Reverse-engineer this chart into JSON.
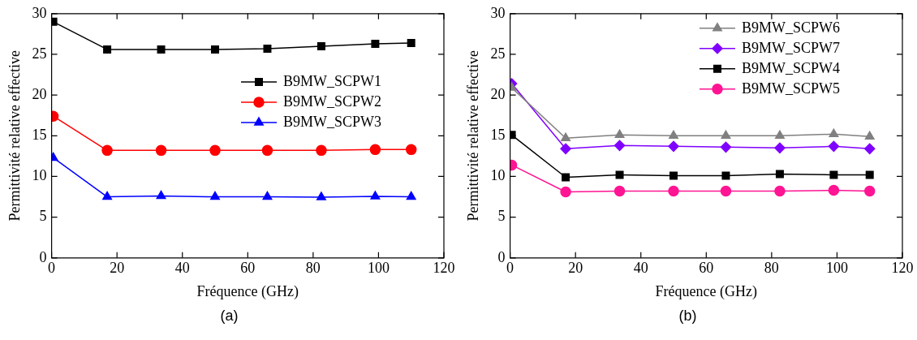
{
  "chart_data": [
    {
      "type": "line",
      "xlabel": "Fréquence (GHz)",
      "ylabel": "Permittivité relative effective",
      "xlim": [
        0,
        120
      ],
      "xticks": [
        0,
        20,
        40,
        60,
        80,
        100,
        120
      ],
      "ylim": [
        0,
        30
      ],
      "yticks": [
        0,
        5,
        10,
        15,
        20,
        25,
        30
      ],
      "grid": false,
      "legend": "right",
      "annotations": [
        "(a)"
      ],
      "x": [
        0.5,
        17,
        33.5,
        50,
        66,
        82.5,
        99,
        110
      ],
      "series": [
        {
          "name": "B9MW_SCPW1",
          "color": "#000000",
          "marker": "square",
          "values": [
            29,
            25.6,
            25.6,
            25.6,
            25.7,
            26,
            26.3,
            26.4
          ]
        },
        {
          "name": "B9MW_SCPW2",
          "color": "#ff0000",
          "marker": "circle",
          "values": [
            17.4,
            13.2,
            13.2,
            13.2,
            13.2,
            13.2,
            13.3,
            13.3
          ]
        },
        {
          "name": "B9MW_SCPW3",
          "color": "#0000ff",
          "marker": "triangle",
          "values": [
            12.3,
            7.5,
            7.6,
            7.5,
            7.5,
            7.45,
            7.55,
            7.5
          ]
        }
      ]
    },
    {
      "type": "line",
      "xlabel": "Fréquence (GHz)",
      "ylabel": "Permittivité relative effective",
      "xlim": [
        0,
        120
      ],
      "xticks": [
        0,
        20,
        40,
        60,
        80,
        100,
        120
      ],
      "ylim": [
        0,
        30
      ],
      "yticks": [
        0,
        5,
        10,
        15,
        20,
        25,
        30
      ],
      "grid": false,
      "legend": "top right",
      "annotations": [
        "(b)"
      ],
      "x": [
        0.5,
        17,
        33.5,
        50,
        66,
        82.5,
        99,
        110
      ],
      "series": [
        {
          "name": "B9MW_SCPW6",
          "color": "#808080",
          "marker": "triangle",
          "values": [
            20.9,
            14.7,
            15.1,
            15,
            15,
            15,
            15.2,
            14.9
          ]
        },
        {
          "name": "B9MW_SCPW7",
          "color": "#8000ff",
          "marker": "diamond",
          "values": [
            21.4,
            13.4,
            13.8,
            13.7,
            13.6,
            13.5,
            13.7,
            13.4
          ]
        },
        {
          "name": "B9MW_SCPW4",
          "color": "#000000",
          "marker": "square",
          "values": [
            15.1,
            9.9,
            10.2,
            10.1,
            10.1,
            10.3,
            10.2,
            10.2
          ]
        },
        {
          "name": "B9MW_SCPW5",
          "color": "#ff1493",
          "marker": "circle",
          "values": [
            11.4,
            8.1,
            8.2,
            8.2,
            8.2,
            8.2,
            8.3,
            8.2
          ]
        }
      ]
    }
  ]
}
